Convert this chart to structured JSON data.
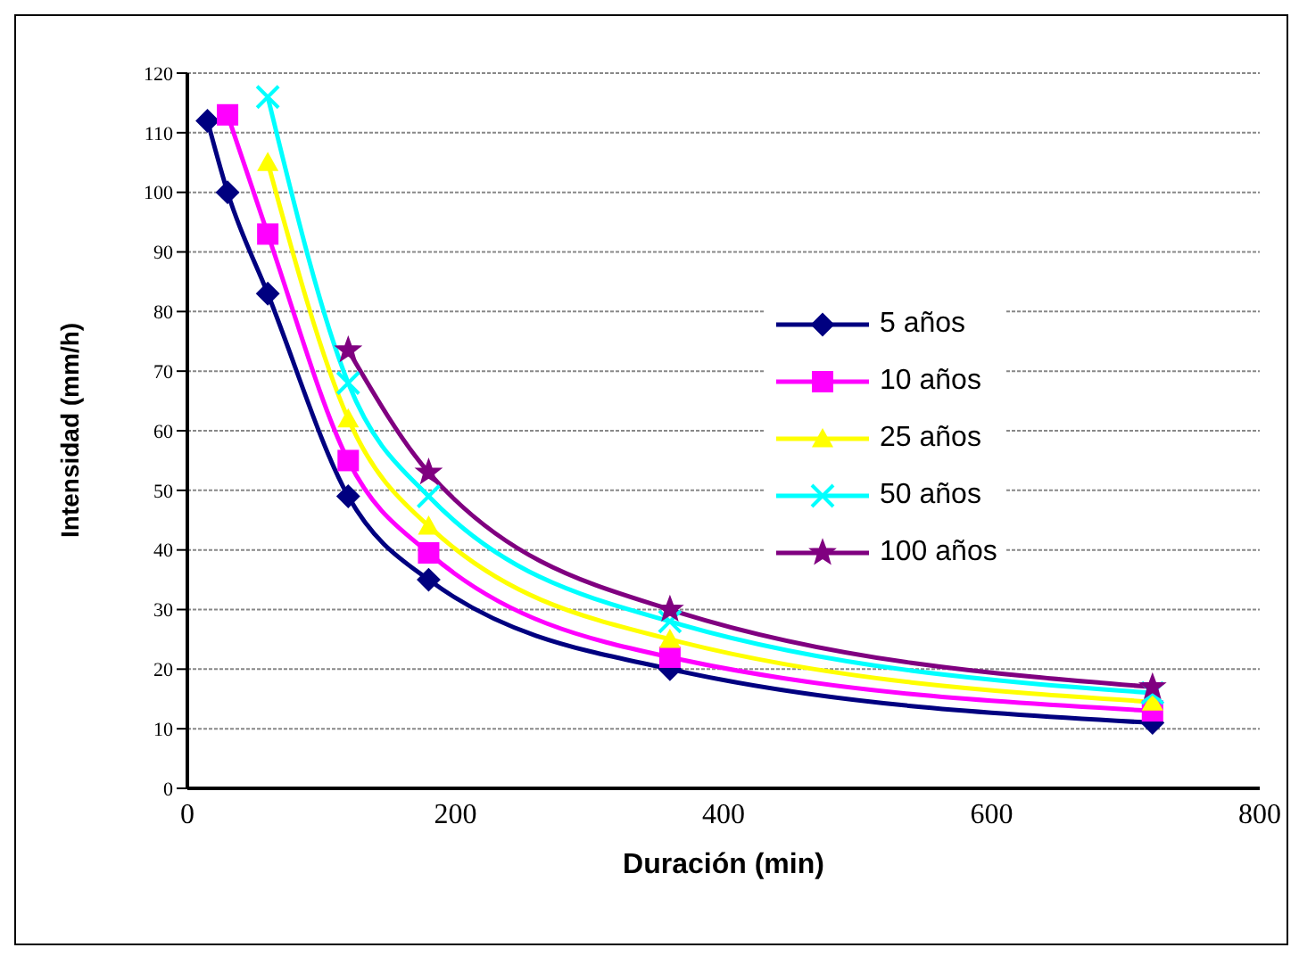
{
  "chart_data": {
    "type": "line",
    "xlabel": "Duración (min)",
    "ylabel": "Intensidad (mm/h)",
    "xlim": [
      0,
      800
    ],
    "xticks": [
      0,
      200,
      400,
      600,
      800
    ],
    "ylim": [
      0,
      120
    ],
    "yticks": [
      0,
      10,
      20,
      30,
      40,
      50,
      60,
      70,
      80,
      90,
      100,
      110,
      120
    ],
    "grid": "y",
    "legend": "right",
    "line_style": "solid",
    "series": [
      {
        "name": "5 años",
        "color": "#000080",
        "marker": "diamond",
        "x": [
          15,
          30,
          60,
          120,
          180,
          360,
          720
        ],
        "values": [
          112,
          100,
          83,
          49,
          35,
          20,
          11
        ]
      },
      {
        "name": "10 años",
        "color": "#ff00ff",
        "marker": "square",
        "x": [
          30,
          60,
          120,
          180,
          360,
          720
        ],
        "values": [
          113,
          93,
          55,
          39.5,
          22,
          13
        ]
      },
      {
        "name": "25 años",
        "color": "#ffff00",
        "marker": "triangle",
        "x": [
          60,
          120,
          180,
          360,
          720
        ],
        "values": [
          105,
          62,
          44,
          25,
          14.5
        ]
      },
      {
        "name": "50 años",
        "color": "#00ffff",
        "marker": "cross",
        "x": [
          60,
          120,
          180,
          360,
          720
        ],
        "values": [
          116,
          68,
          49,
          28,
          16
        ]
      },
      {
        "name": "100 años",
        "color": "#800080",
        "marker": "star",
        "x": [
          120,
          180,
          360,
          720
        ],
        "values": [
          73.5,
          53,
          30,
          17
        ]
      }
    ]
  }
}
